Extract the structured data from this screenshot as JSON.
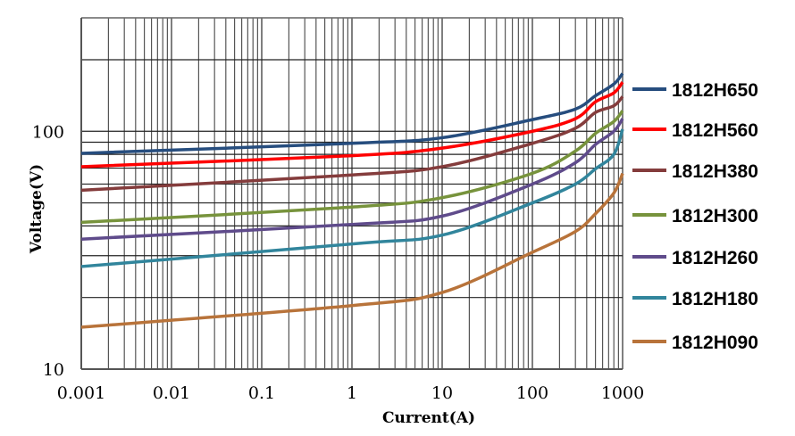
{
  "chart_data": {
    "type": "line",
    "title": "",
    "xlabel": "Current(A)",
    "ylabel": "Voltage(V)",
    "x_scale": "log",
    "y_scale": "log",
    "xlim": [
      0.001,
      1000
    ],
    "ylim": [
      10,
      300
    ],
    "grid": true,
    "legend_position": "right",
    "x_ticks": [
      {
        "value": 0.001,
        "label": "0.001"
      },
      {
        "value": 0.01,
        "label": "0.01"
      },
      {
        "value": 0.1,
        "label": "0.1"
      },
      {
        "value": 1,
        "label": "1"
      },
      {
        "value": 10,
        "label": "10"
      },
      {
        "value": 100,
        "label": "100"
      },
      {
        "value": 1000,
        "label": "1000"
      }
    ],
    "y_ticks": [
      {
        "value": 10,
        "label": "10"
      },
      {
        "value": 100,
        "label": "100"
      }
    ],
    "x": [
      0.001,
      1,
      10,
      100,
      300,
      500,
      800,
      1000
    ],
    "series": [
      {
        "name": "1812H650",
        "color": "#264d7e",
        "values": [
          80.8,
          89,
          94,
          112,
          124,
          141,
          158,
          175
        ]
      },
      {
        "name": "1812H560",
        "color": "#ff0000",
        "values": [
          71,
          79,
          85,
          100,
          113,
          133,
          145,
          161
        ]
      },
      {
        "name": "1812H380",
        "color": "#843c3c",
        "values": [
          56.5,
          65.5,
          71,
          89,
          103,
          120,
          128,
          140
        ]
      },
      {
        "name": "1812H300",
        "color": "#77933c",
        "values": [
          41.4,
          48,
          52.6,
          66.6,
          82.6,
          98,
          110,
          122
        ]
      },
      {
        "name": "1812H260",
        "color": "#5f4b8b",
        "values": [
          35.2,
          40.6,
          44,
          60,
          73.8,
          88,
          100,
          113
        ]
      },
      {
        "name": "1812H180",
        "color": "#31859c",
        "values": [
          27,
          33.6,
          36.6,
          50,
          60,
          69.5,
          80,
          102
        ]
      },
      {
        "name": "1812H090",
        "color": "#b8733a",
        "values": [
          15,
          18.5,
          21,
          31,
          37.9,
          45,
          55,
          66.5
        ]
      }
    ]
  }
}
